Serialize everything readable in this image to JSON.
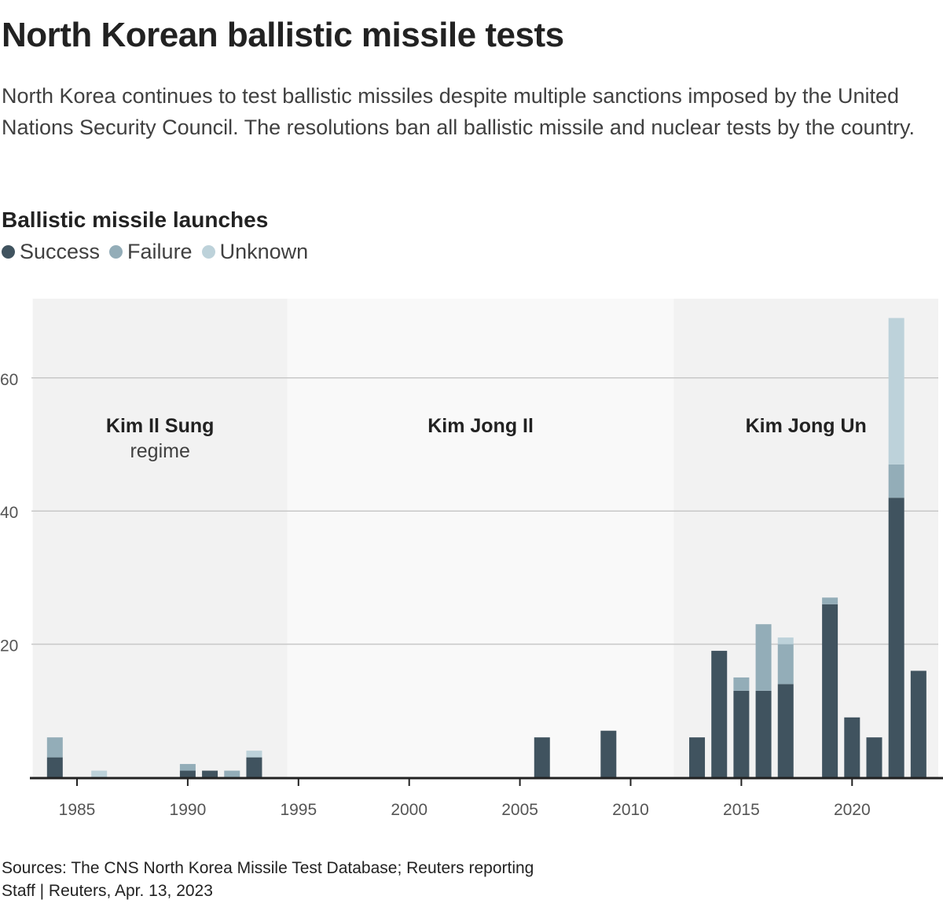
{
  "title": "North Korean ballistic missile tests",
  "subtitle": "North Korea continues to test ballistic missiles despite multiple sanctions imposed by the United Nations Security Council. The resolutions ban all ballistic missile and nuclear tests by the country.",
  "footer": {
    "sources": "Sources: The CNS North Korea Missile Test Database; Reuters reporting",
    "credit": "Staff | Reuters, Apr. 13, 2023"
  },
  "chart_data": {
    "type": "bar",
    "stacked": true,
    "title": "Ballistic missile launches",
    "xlabel": "",
    "ylabel": "",
    "ylim": [
      0,
      70
    ],
    "xlim": [
      1983,
      2024
    ],
    "yticks": [
      20,
      40,
      60
    ],
    "xticks": [
      1985,
      1990,
      1995,
      2000,
      2005,
      2010,
      2015,
      2020
    ],
    "grid": true,
    "legend_position": "top-left",
    "categories": [
      1984,
      1986,
      1990,
      1991,
      1992,
      1993,
      2006,
      2009,
      2013,
      2014,
      2015,
      2016,
      2017,
      2019,
      2020,
      2021,
      2022,
      2023
    ],
    "series": [
      {
        "name": "Success",
        "color": "#40535f",
        "values": [
          3,
          0,
          1,
          1,
          0,
          3,
          6,
          7,
          6,
          19,
          13,
          13,
          14,
          26,
          9,
          6,
          42,
          16
        ]
      },
      {
        "name": "Failure",
        "color": "#93adb8",
        "values": [
          3,
          0,
          1,
          0,
          1,
          0,
          0,
          0,
          0,
          0,
          2,
          10,
          6,
          1,
          0,
          0,
          5,
          0
        ]
      },
      {
        "name": "Unknown",
        "color": "#bdd2da",
        "values": [
          0,
          1,
          0,
          0,
          0,
          1,
          0,
          0,
          0,
          0,
          0,
          0,
          1,
          0,
          0,
          0,
          22,
          0
        ]
      }
    ],
    "regimes": [
      {
        "label": "Kim Il Sung",
        "sublabel": "regime",
        "from": 1983,
        "to": 1994.5,
        "color": "#f2f2f2"
      },
      {
        "label": "Kim Jong Il",
        "sublabel": "",
        "from": 1994.5,
        "to": 2011.95,
        "color": "#f9f9f9"
      },
      {
        "label": "Kim Jong Un",
        "sublabel": "",
        "from": 2011.95,
        "to": 2023.9,
        "color": "#f2f2f2"
      }
    ]
  }
}
